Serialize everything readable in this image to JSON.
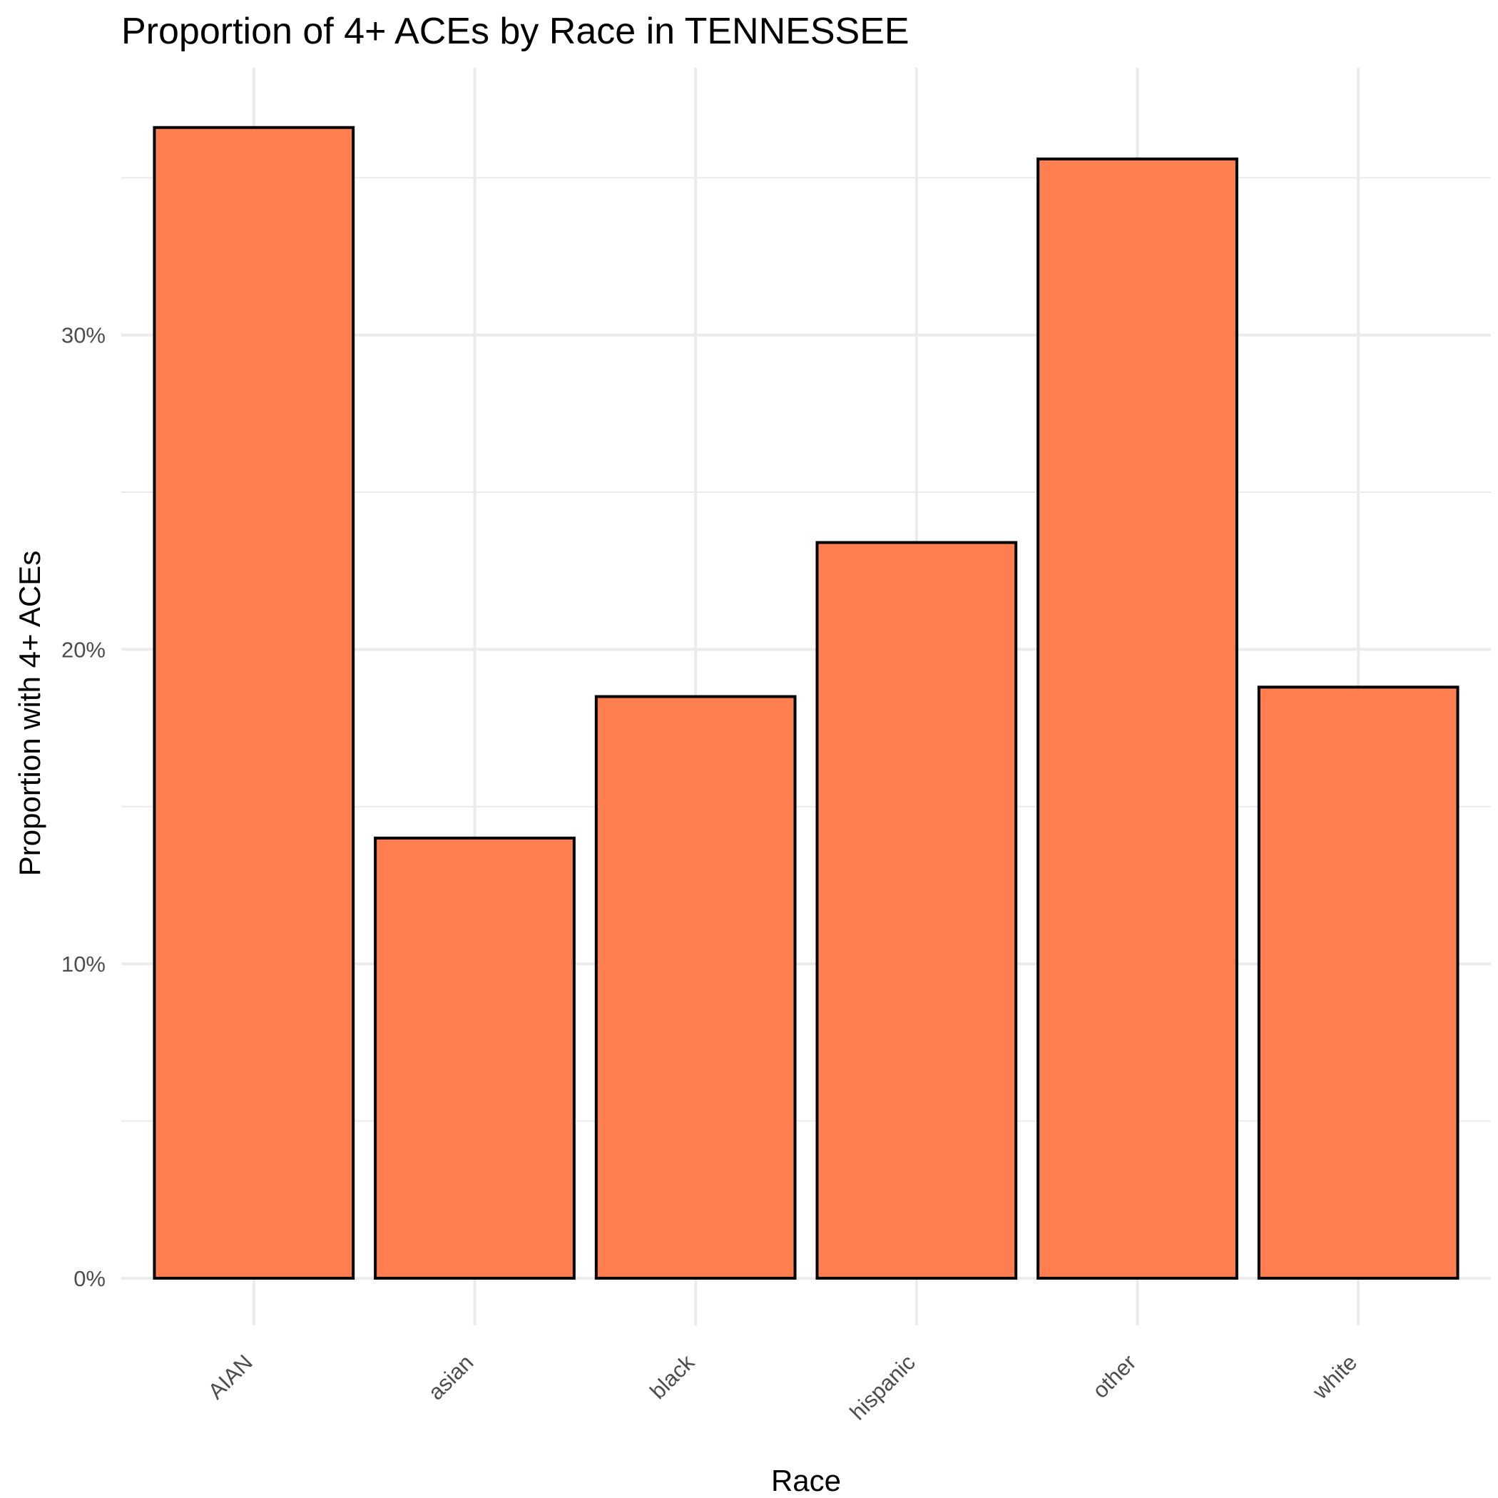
{
  "chart_data": {
    "type": "bar",
    "title": "Proportion of 4+ ACEs by Race in TENNESSEE",
    "xlabel": "Race",
    "ylabel": "Proportion with 4+ ACEs",
    "categories": [
      "AIAN",
      "asian",
      "black",
      "hispanic",
      "other",
      "white"
    ],
    "values": [
      0.366,
      0.14,
      0.185,
      0.234,
      0.356,
      0.188
    ],
    "ylim": [
      -0.015,
      0.385
    ],
    "yticks": [
      0,
      0.1,
      0.2,
      0.3
    ],
    "ytick_labels": [
      "0%",
      "10%",
      "20%",
      "30%"
    ],
    "grid": true,
    "legend": "none",
    "colors": {
      "bar_fill": "#FF7F50",
      "bar_stroke": "#000000",
      "grid": "#EBEBEB"
    }
  }
}
